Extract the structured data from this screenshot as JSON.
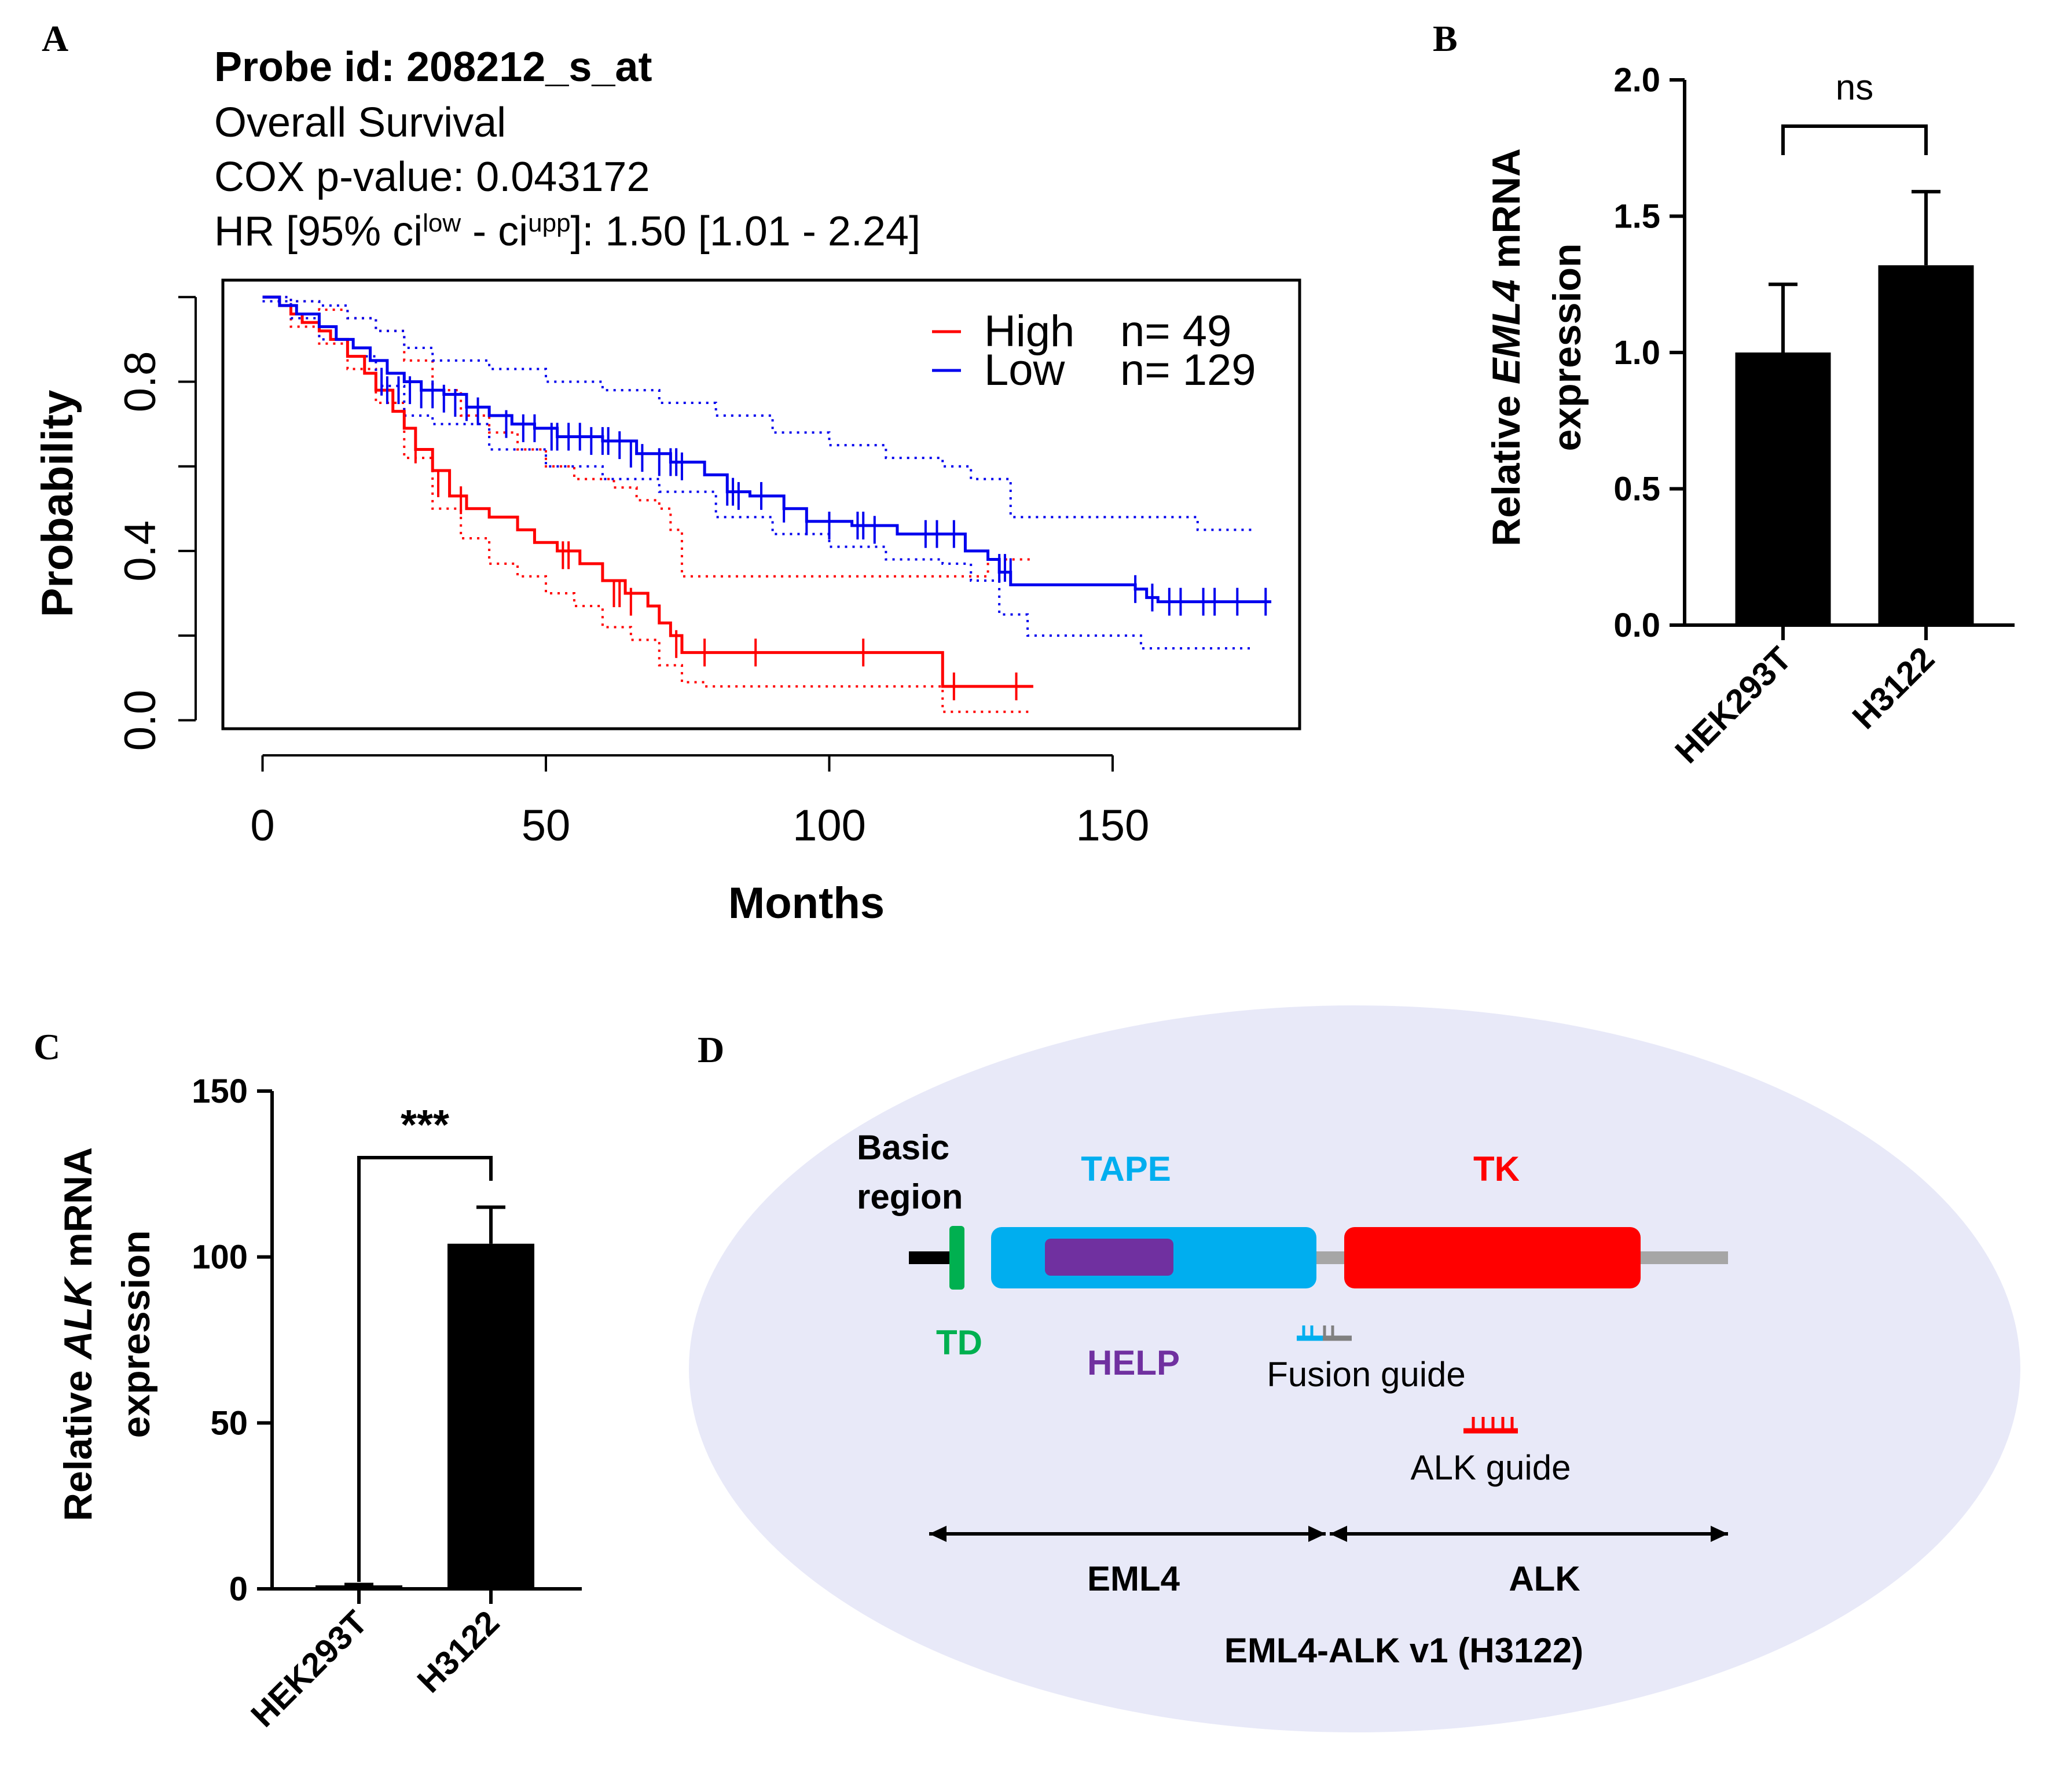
{
  "panels": {
    "a": "A",
    "b": "B",
    "c": "C",
    "d": "D"
  },
  "chart_data": [
    {
      "panel": "A",
      "type": "line",
      "subtype": "kaplan-meier",
      "header": {
        "probe": "Probe id: 208212_s_at",
        "endpoint": "Overall Survival",
        "cox": "COX p-value: 0.043172",
        "hr_prefix": "HR [95% ci",
        "hr_low": "low",
        "hr_sep": " - ci",
        "hr_upp": "upp",
        "hr_suffix": "]: 1.50 [1.01 - 2.24]"
      },
      "xlabel": "Months",
      "ylabel": "Probability",
      "xlim": [
        -7,
        183
      ],
      "ylim": [
        -0.02,
        1.04
      ],
      "xticks": [
        "0",
        "50",
        "100",
        "150"
      ],
      "xtick_values": [
        0,
        50,
        100,
        150
      ],
      "yticks": [
        "0.0",
        "0.4",
        "0.8"
      ],
      "ytick_values": [
        0.0,
        0.2,
        0.4,
        0.6,
        0.8,
        1.0
      ],
      "legend": {
        "position": "top-right"
      },
      "colors": {
        "high": "#ff0000",
        "low": "#0000ee"
      },
      "series": [
        {
          "name": "High",
          "n_label": "n= 49",
          "points": [
            [
              0,
              1.0
            ],
            [
              3,
              0.98
            ],
            [
              5,
              0.96
            ],
            [
              7,
              0.94
            ],
            [
              10,
              0.92
            ],
            [
              12,
              0.9
            ],
            [
              15,
              0.86
            ],
            [
              18,
              0.82
            ],
            [
              20,
              0.78
            ],
            [
              23,
              0.73
            ],
            [
              25,
              0.69
            ],
            [
              27,
              0.64
            ],
            [
              30,
              0.59
            ],
            [
              33,
              0.53
            ],
            [
              36,
              0.5
            ],
            [
              40,
              0.48
            ],
            [
              45,
              0.45
            ],
            [
              48,
              0.42
            ],
            [
              52,
              0.4
            ],
            [
              56,
              0.37
            ],
            [
              60,
              0.33
            ],
            [
              64,
              0.3
            ],
            [
              68,
              0.27
            ],
            [
              70,
              0.23
            ],
            [
              72,
              0.2
            ],
            [
              74,
              0.16
            ],
            [
              78,
              0.16
            ],
            [
              120,
              0.16
            ],
            [
              120,
              0.08
            ],
            [
              136,
              0.08
            ]
          ],
          "censors": [
            [
              27,
              0.64
            ],
            [
              31,
              0.56
            ],
            [
              35,
              0.52
            ],
            [
              53,
              0.39
            ],
            [
              54,
              0.39
            ],
            [
              62,
              0.3
            ],
            [
              63,
              0.3
            ],
            [
              65,
              0.28
            ],
            [
              73,
              0.18
            ],
            [
              78,
              0.16
            ],
            [
              87,
              0.16
            ],
            [
              106,
              0.16
            ],
            [
              122,
              0.08
            ],
            [
              133,
              0.08
            ]
          ],
          "ci_upper": [
            [
              0,
              1.0
            ],
            [
              5,
              0.99
            ],
            [
              10,
              0.97
            ],
            [
              15,
              0.95
            ],
            [
              20,
              0.92
            ],
            [
              25,
              0.85
            ],
            [
              30,
              0.78
            ],
            [
              35,
              0.72
            ],
            [
              40,
              0.68
            ],
            [
              45,
              0.64
            ],
            [
              50,
              0.6
            ],
            [
              55,
              0.57
            ],
            [
              62,
              0.55
            ],
            [
              66,
              0.52
            ],
            [
              70,
              0.5
            ],
            [
              72,
              0.45
            ],
            [
              74,
              0.34
            ],
            [
              118,
              0.34
            ],
            [
              122,
              0.34
            ],
            [
              128,
              0.38
            ],
            [
              136,
              0.38
            ]
          ],
          "ci_lower": [
            [
              0,
              0.99
            ],
            [
              5,
              0.93
            ],
            [
              10,
              0.89
            ],
            [
              15,
              0.83
            ],
            [
              20,
              0.75
            ],
            [
              25,
              0.62
            ],
            [
              30,
              0.5
            ],
            [
              35,
              0.43
            ],
            [
              40,
              0.37
            ],
            [
              45,
              0.34
            ],
            [
              50,
              0.3
            ],
            [
              55,
              0.27
            ],
            [
              60,
              0.22
            ],
            [
              65,
              0.19
            ],
            [
              70,
              0.13
            ],
            [
              74,
              0.09
            ],
            [
              78,
              0.08
            ],
            [
              118,
              0.08
            ],
            [
              120,
              0.02
            ],
            [
              136,
              0.02
            ]
          ]
        },
        {
          "name": "Low",
          "n_label": "n= 129",
          "points": [
            [
              0,
              1.0
            ],
            [
              3,
              0.98
            ],
            [
              6,
              0.96
            ],
            [
              10,
              0.93
            ],
            [
              13,
              0.9
            ],
            [
              16,
              0.88
            ],
            [
              19,
              0.85
            ],
            [
              22,
              0.82
            ],
            [
              25,
              0.8
            ],
            [
              28,
              0.78
            ],
            [
              32,
              0.77
            ],
            [
              36,
              0.74
            ],
            [
              40,
              0.72
            ],
            [
              44,
              0.7
            ],
            [
              48,
              0.69
            ],
            [
              52,
              0.67
            ],
            [
              60,
              0.66
            ],
            [
              66,
              0.63
            ],
            [
              72,
              0.61
            ],
            [
              78,
              0.58
            ],
            [
              82,
              0.54
            ],
            [
              86,
              0.53
            ],
            [
              92,
              0.5
            ],
            [
              96,
              0.47
            ],
            [
              104,
              0.46
            ],
            [
              112,
              0.44
            ],
            [
              122,
              0.44
            ],
            [
              124,
              0.4
            ],
            [
              128,
              0.38
            ],
            [
              130,
              0.35
            ],
            [
              132,
              0.32
            ],
            [
              150,
              0.32
            ],
            [
              154,
              0.31
            ],
            [
              156,
              0.29
            ],
            [
              158,
              0.28
            ],
            [
              178,
              0.28
            ]
          ],
          "censors": [
            [
              21,
              0.8
            ],
            [
              22,
              0.78
            ],
            [
              24,
              0.78
            ],
            [
              26,
              0.78
            ],
            [
              28,
              0.77
            ],
            [
              30,
              0.77
            ],
            [
              32,
              0.76
            ],
            [
              34,
              0.75
            ],
            [
              36,
              0.74
            ],
            [
              38,
              0.73
            ],
            [
              43,
              0.7
            ],
            [
              46,
              0.69
            ],
            [
              48,
              0.69
            ],
            [
              51,
              0.67
            ],
            [
              52,
              0.67
            ],
            [
              54,
              0.67
            ],
            [
              56,
              0.67
            ],
            [
              58,
              0.66
            ],
            [
              60,
              0.66
            ],
            [
              61,
              0.66
            ],
            [
              63,
              0.65
            ],
            [
              65,
              0.63
            ],
            [
              67,
              0.62
            ],
            [
              70,
              0.61
            ],
            [
              72,
              0.61
            ],
            [
              73,
              0.61
            ],
            [
              74,
              0.6
            ],
            [
              82,
              0.54
            ],
            [
              83,
              0.54
            ],
            [
              84,
              0.53
            ],
            [
              88,
              0.53
            ],
            [
              92,
              0.5
            ],
            [
              96,
              0.47
            ],
            [
              100,
              0.46
            ],
            [
              105,
              0.46
            ],
            [
              106,
              0.46
            ],
            [
              108,
              0.45
            ],
            [
              117,
              0.44
            ],
            [
              119,
              0.44
            ],
            [
              122,
              0.44
            ],
            [
              130,
              0.36
            ],
            [
              131,
              0.36
            ],
            [
              132,
              0.35
            ],
            [
              154,
              0.31
            ],
            [
              157,
              0.29
            ],
            [
              160,
              0.28
            ],
            [
              162,
              0.28
            ],
            [
              166,
              0.28
            ],
            [
              168,
              0.28
            ],
            [
              172,
              0.28
            ],
            [
              177,
              0.28
            ]
          ],
          "ci_upper": [
            [
              0,
              1.0
            ],
            [
              5,
              0.99
            ],
            [
              10,
              0.98
            ],
            [
              15,
              0.95
            ],
            [
              20,
              0.92
            ],
            [
              25,
              0.88
            ],
            [
              30,
              0.85
            ],
            [
              40,
              0.83
            ],
            [
              50,
              0.8
            ],
            [
              60,
              0.78
            ],
            [
              70,
              0.75
            ],
            [
              80,
              0.72
            ],
            [
              90,
              0.68
            ],
            [
              100,
              0.65
            ],
            [
              110,
              0.62
            ],
            [
              120,
              0.6
            ],
            [
              125,
              0.57
            ],
            [
              132,
              0.48
            ],
            [
              150,
              0.48
            ],
            [
              165,
              0.45
            ],
            [
              175,
              0.45
            ]
          ],
          "ci_lower": [
            [
              0,
              0.99
            ],
            [
              5,
              0.95
            ],
            [
              10,
              0.9
            ],
            [
              15,
              0.86
            ],
            [
              20,
              0.79
            ],
            [
              25,
              0.72
            ],
            [
              30,
              0.7
            ],
            [
              40,
              0.64
            ],
            [
              50,
              0.6
            ],
            [
              60,
              0.57
            ],
            [
              70,
              0.54
            ],
            [
              80,
              0.48
            ],
            [
              90,
              0.44
            ],
            [
              100,
              0.41
            ],
            [
              110,
              0.38
            ],
            [
              120,
              0.37
            ],
            [
              125,
              0.33
            ],
            [
              130,
              0.25
            ],
            [
              135,
              0.2
            ],
            [
              150,
              0.2
            ],
            [
              155,
              0.17
            ],
            [
              175,
              0.17
            ]
          ]
        }
      ]
    },
    {
      "panel": "B",
      "type": "bar",
      "categories": [
        "HEK293T",
        "H3122"
      ],
      "values": [
        1.0,
        1.32
      ],
      "errors": [
        0.25,
        0.27
      ],
      "ylabel_prefix": "Relative ",
      "ylabel_gene": "EML4",
      "ylabel_suffix": " mRNA",
      "ylabel_line2": "expression",
      "ylim": [
        0,
        2.0
      ],
      "yticks": [
        "0.0",
        "0.5",
        "1.0",
        "1.5",
        "2.0"
      ],
      "ytick_values": [
        0,
        0.5,
        1.0,
        1.5,
        2.0
      ],
      "significance": "ns",
      "bar_color": "#000000"
    },
    {
      "panel": "C",
      "type": "bar",
      "categories": [
        "HEK293T",
        "H3122"
      ],
      "values": [
        1.0,
        104
      ],
      "errors": [
        0.3,
        11
      ],
      "ylabel_prefix": "Relative ",
      "ylabel_gene": "ALK",
      "ylabel_suffix": " mRNA",
      "ylabel_line2": "expression",
      "ylim": [
        0,
        150
      ],
      "yticks": [
        "0",
        "50",
        "100",
        "150"
      ],
      "ytick_values": [
        0,
        50,
        100,
        150
      ],
      "significance": "***",
      "bar_color": "#000000"
    }
  ],
  "diagram": {
    "basic_line1": "Basic",
    "basic_line2": "region",
    "tape": "TAPE",
    "tk": "TK",
    "td": "TD",
    "help": "HELP",
    "fusion_guide": "Fusion guide",
    "alk_guide": "ALK guide",
    "eml4": "EML4",
    "alk": "ALK",
    "title": "EML4-ALK v1 (H3122)",
    "colors": {
      "background": "#e8e9f8",
      "tape": "#00aeef",
      "help": "#7030a0",
      "tk": "#ff0000",
      "td": "#00b050",
      "linker": "#a6a6a6",
      "basic": "#000000"
    }
  }
}
